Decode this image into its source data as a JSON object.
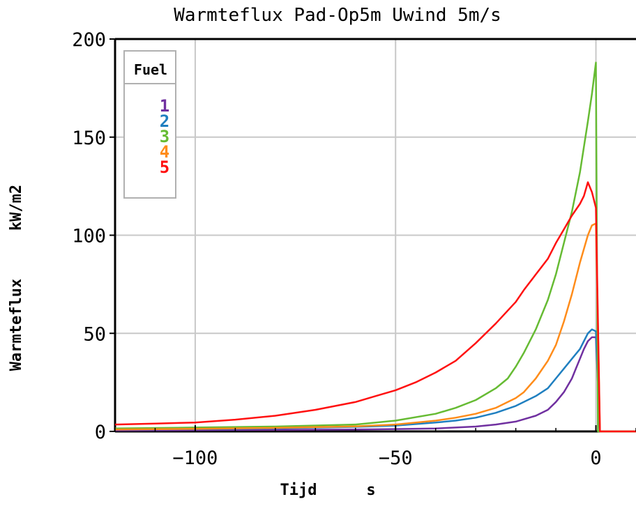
{
  "chart_data": {
    "type": "line",
    "title": "Warmteflux Pad-Op5m Uwind 5m/s",
    "ylabel_parts": [
      "Warmteflux",
      "kW/m2"
    ],
    "xlabel_parts": [
      "Tijd",
      "s"
    ],
    "xlim": [
      -120,
      10
    ],
    "ylim": [
      0,
      200
    ],
    "xticks": [
      -100,
      -50,
      0
    ],
    "xtick_labels": [
      "−100",
      "−50",
      "0"
    ],
    "yticks": [
      0,
      50,
      100,
      150,
      200
    ],
    "ytick_labels": [
      "0",
      "50",
      "100",
      "150",
      "200"
    ],
    "grid": true,
    "legend_title": "Fuel",
    "legend_position": "top-left",
    "series": [
      {
        "name": "1",
        "color": "#7030a0",
        "x": [
          -120,
          -100,
          -80,
          -60,
          -50,
          -40,
          -30,
          -25,
          -20,
          -15,
          -12,
          -10,
          -8,
          -6,
          -5,
          -4,
          -3,
          -2,
          -1,
          0,
          1,
          2,
          10
        ],
        "y": [
          0.5,
          0.6,
          0.8,
          1.0,
          1.2,
          1.5,
          2.5,
          3.5,
          5,
          8,
          11,
          15,
          20,
          27,
          32,
          37,
          42,
          46,
          48,
          48,
          0,
          0,
          0
        ]
      },
      {
        "name": "2",
        "color": "#1f7fc0",
        "x": [
          -120,
          -100,
          -80,
          -60,
          -50,
          -40,
          -35,
          -30,
          -25,
          -20,
          -15,
          -12,
          -10,
          -8,
          -6,
          -4,
          -3,
          -2,
          -1,
          0,
          1,
          2,
          10
        ],
        "y": [
          1,
          1.2,
          1.6,
          2.3,
          3,
          4.5,
          5.5,
          7,
          9.5,
          13,
          18,
          22,
          27,
          32,
          37,
          42,
          46,
          50,
          52,
          51,
          0,
          0,
          0
        ]
      },
      {
        "name": "3",
        "color": "#66bb33",
        "x": [
          -120,
          -100,
          -80,
          -60,
          -50,
          -40,
          -35,
          -30,
          -25,
          -22,
          -20,
          -18,
          -15,
          -12,
          -10,
          -8,
          -6,
          -4,
          -3,
          -2,
          -1,
          0,
          0.5,
          2,
          10
        ],
        "y": [
          1.5,
          2,
          2.5,
          3.5,
          5.5,
          9,
          12,
          16,
          22,
          27,
          33,
          40,
          52,
          67,
          80,
          96,
          112,
          132,
          145,
          158,
          172,
          188,
          0,
          0,
          0
        ]
      },
      {
        "name": "4",
        "color": "#ff8c1a",
        "x": [
          -120,
          -100,
          -80,
          -60,
          -50,
          -40,
          -35,
          -30,
          -25,
          -20,
          -18,
          -15,
          -12,
          -10,
          -8,
          -6,
          -4,
          -3,
          -2,
          -1,
          0,
          1,
          2,
          10
        ],
        "y": [
          1,
          1.3,
          1.8,
          2.6,
          3.5,
          5.5,
          7,
          9,
          12,
          17,
          20,
          27,
          36,
          44,
          56,
          70,
          86,
          93,
          100,
          105,
          106,
          0,
          0,
          0
        ]
      },
      {
        "name": "5",
        "color": "#ff1010",
        "x": [
          -120,
          -110,
          -100,
          -90,
          -80,
          -70,
          -60,
          -55,
          -50,
          -45,
          -40,
          -35,
          -30,
          -25,
          -20,
          -18,
          -15,
          -12,
          -10,
          -8,
          -6,
          -4,
          -3,
          -2,
          -1,
          0,
          1,
          2,
          10
        ],
        "y": [
          3.5,
          4,
          4.5,
          6,
          8,
          11,
          15,
          18,
          21,
          25,
          30,
          36,
          45,
          55,
          66,
          72,
          80,
          88,
          96,
          103,
          110,
          116,
          120,
          127,
          122,
          114,
          0,
          0,
          0
        ]
      }
    ]
  }
}
